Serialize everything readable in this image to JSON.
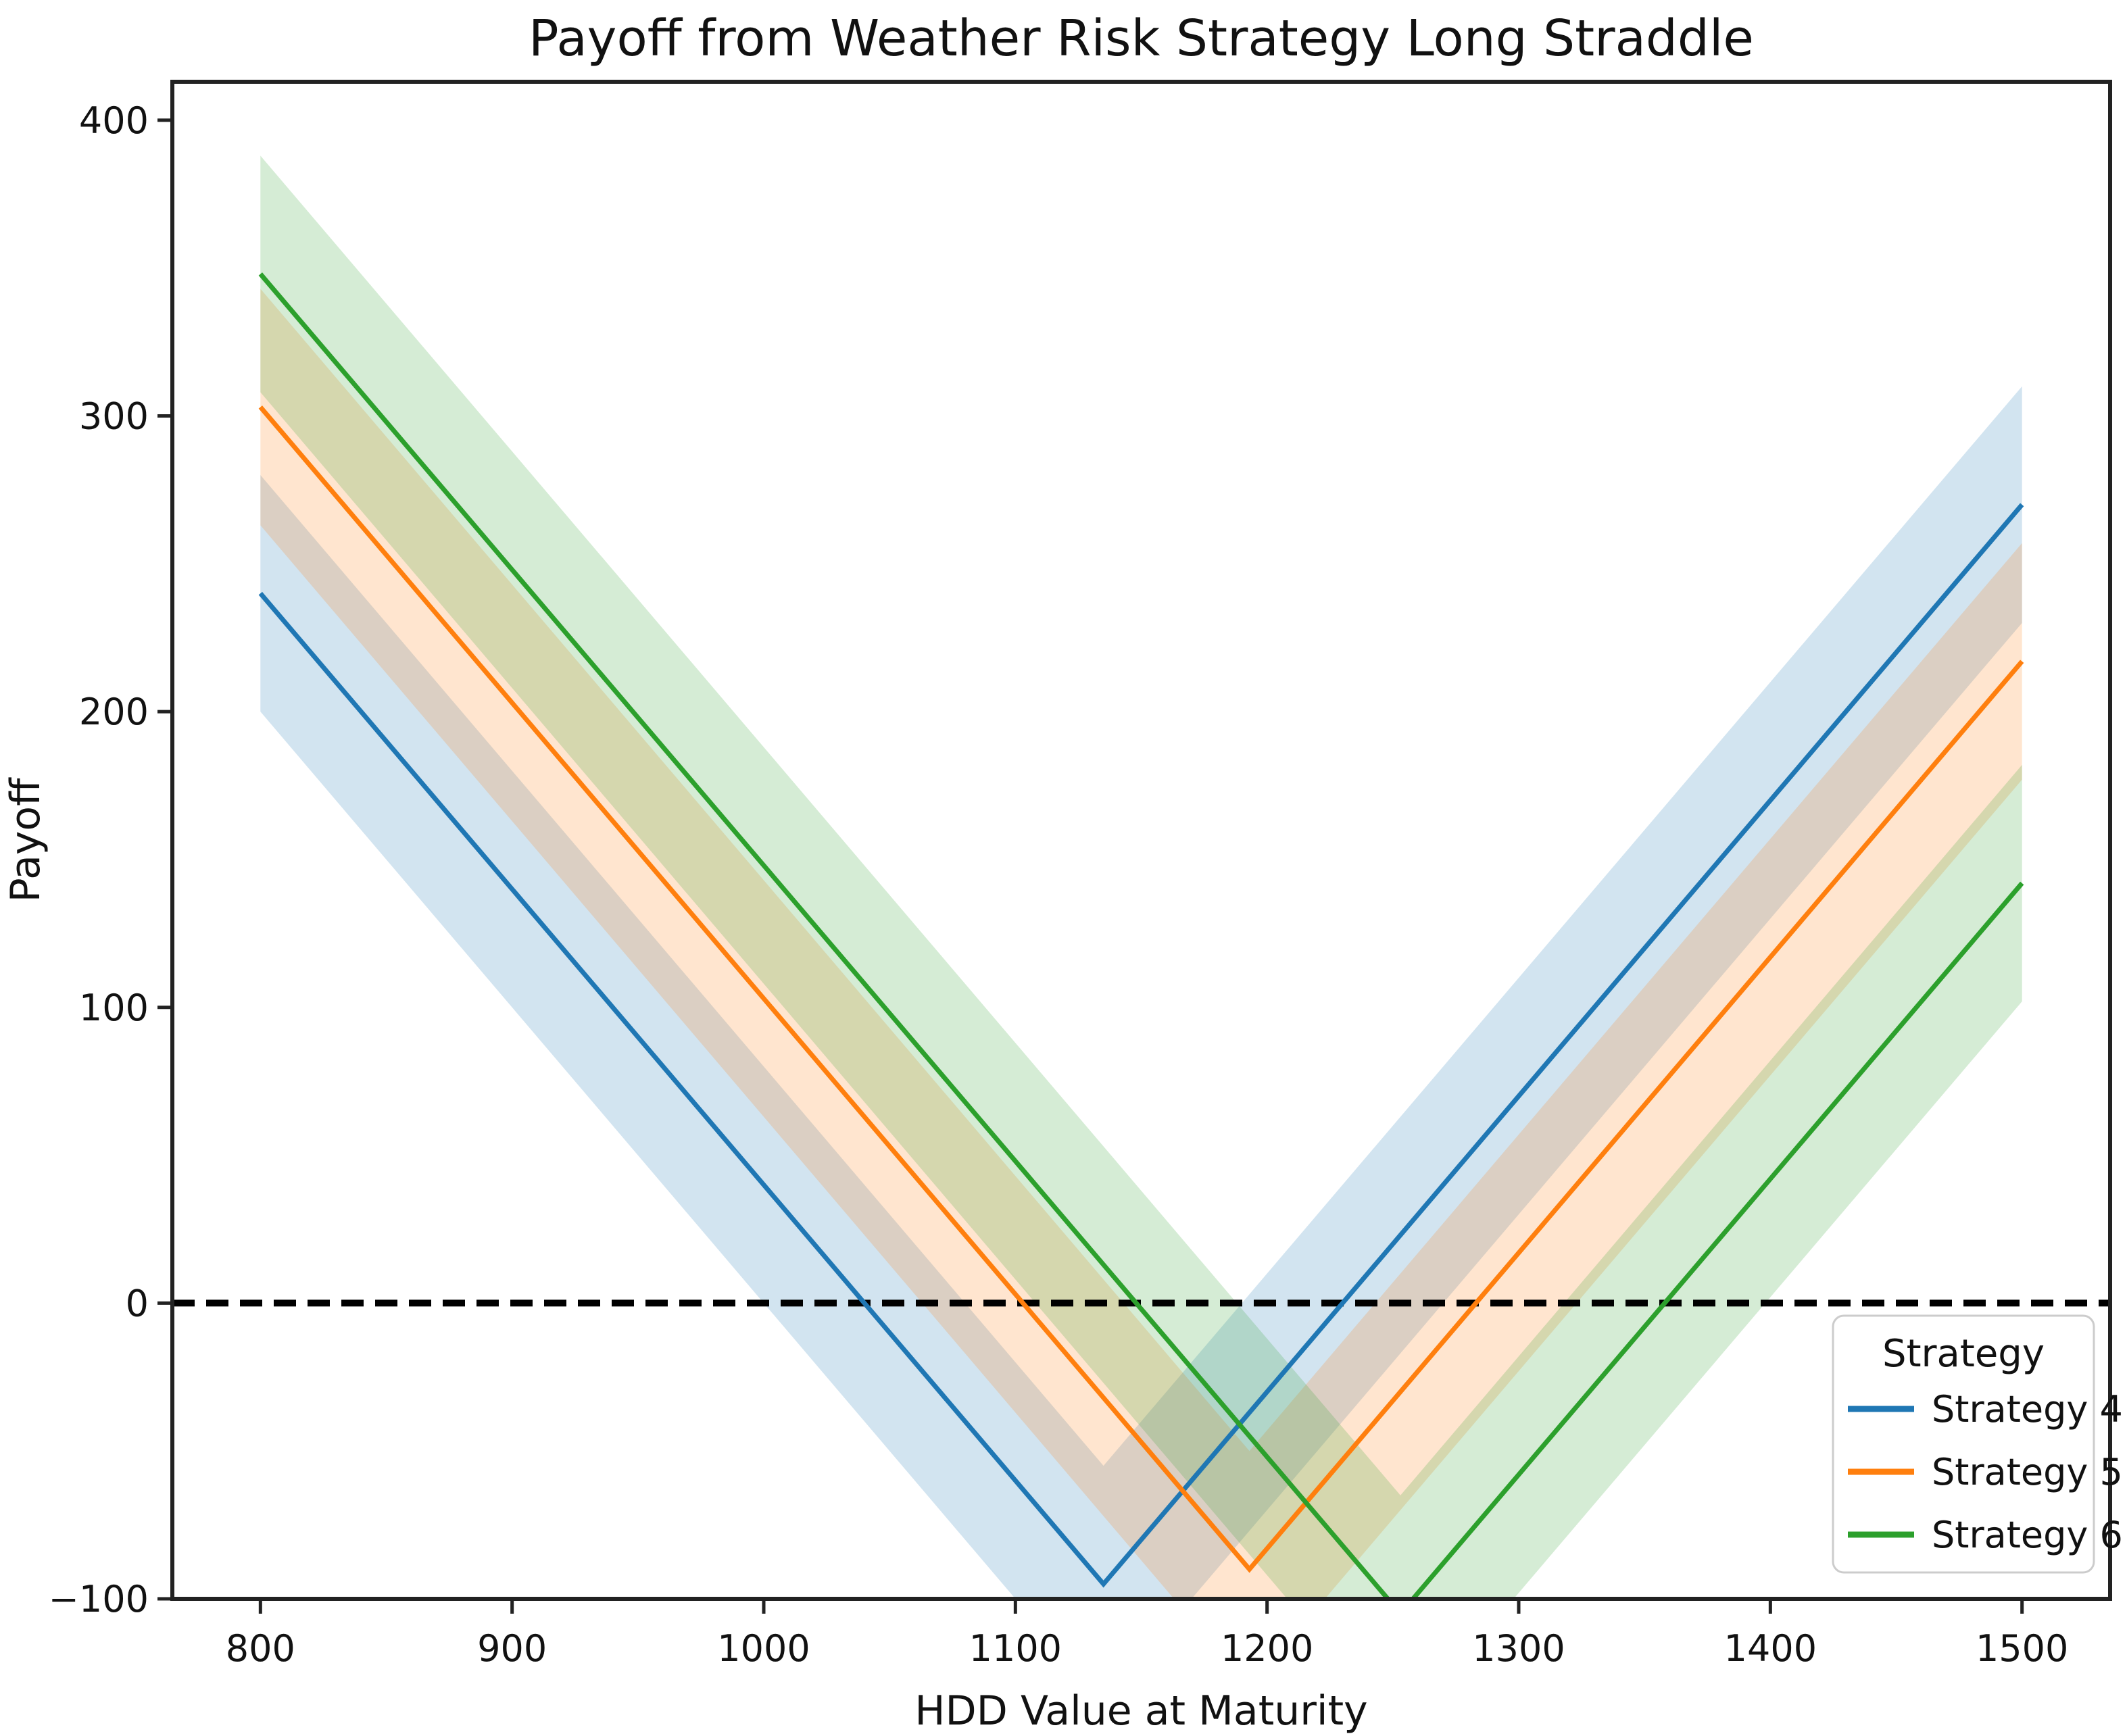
{
  "chart_data": {
    "type": "line",
    "title": "Payoff from Weather Risk Strategy Long Straddle",
    "xlabel": "HDD Value at Maturity",
    "ylabel": "Payoff",
    "xlim": [
      765,
      1535
    ],
    "ylim": [
      -100,
      413
    ],
    "xticks": [
      800,
      900,
      1000,
      1100,
      1200,
      1300,
      1400,
      1500
    ],
    "xtick_labels": [
      "800",
      "900",
      "1000",
      "1100",
      "1200",
      "1300",
      "1400",
      "1500"
    ],
    "yticks": [
      -100,
      0,
      100,
      200,
      300,
      400
    ],
    "ytick_labels": [
      "−100",
      "0",
      "100",
      "200",
      "300",
      "400"
    ],
    "grid": false,
    "zero_line": {
      "y": 0,
      "style": "dashed",
      "color": "#000000"
    },
    "legend": {
      "title": "Strategy",
      "position": "lower right",
      "entries": [
        "Strategy 4",
        "Strategy 5",
        "Strategy 6"
      ]
    },
    "band_halfwidth": 40,
    "band_alpha": 0.2,
    "series": [
      {
        "name": "Strategy 4",
        "color": "#1f77b4",
        "strike": 1135,
        "premium": 95,
        "points": [
          [
            800,
            240
          ],
          [
            1135,
            -95
          ],
          [
            1500,
            270
          ]
        ]
      },
      {
        "name": "Strategy 5",
        "color": "#ff7f0e",
        "strike": 1193,
        "premium": 90,
        "points": [
          [
            800,
            303
          ],
          [
            1193,
            -90
          ],
          [
            1500,
            217
          ]
        ]
      },
      {
        "name": "Strategy 6",
        "color": "#2ca02c",
        "strike": 1253,
        "premium": 105,
        "points": [
          [
            800,
            348
          ],
          [
            1253,
            -105
          ],
          [
            1500,
            142
          ]
        ]
      }
    ]
  }
}
